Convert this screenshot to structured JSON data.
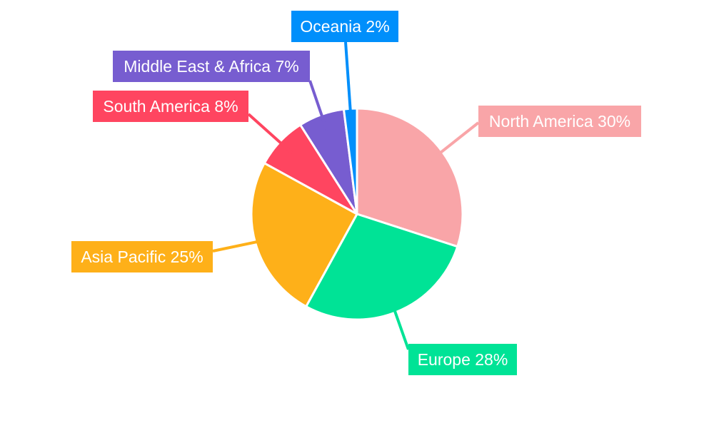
{
  "chart_data": {
    "type": "pie",
    "title": "",
    "legend": "none",
    "slices": [
      {
        "name": "North America",
        "value": 30,
        "label": "North America 30%",
        "color": "#f9a5a8"
      },
      {
        "name": "Europe",
        "value": 28,
        "label": "Europe 28%",
        "color": "#00e396"
      },
      {
        "name": "Asia Pacific",
        "value": 25,
        "label": "Asia Pacific 25%",
        "color": "#feb019"
      },
      {
        "name": "South America",
        "value": 8,
        "label": "South America 8%",
        "color": "#ff4560"
      },
      {
        "name": "Middle East & Africa",
        "value": 7,
        "label": "Middle East & Africa 7%",
        "color": "#775dd0"
      },
      {
        "name": "Oceania",
        "value": 2,
        "label": "Oceania 2%",
        "color": "#008ffb"
      }
    ]
  }
}
